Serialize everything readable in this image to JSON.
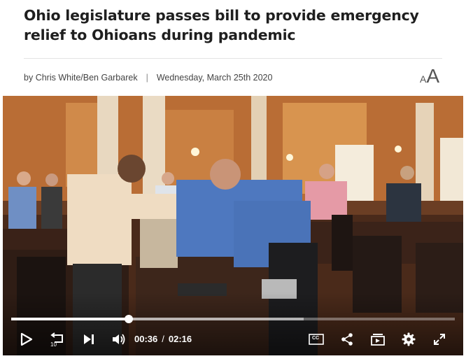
{
  "article": {
    "headline": "Ohio legislature passes bill to provide emergency relief to Ohioans during pandemic",
    "byline_prefix": "by",
    "authors": "Chris White/Ben Garbarek",
    "separator": "|",
    "date": "Wednesday, March 25th 2020",
    "text_size_small": "A",
    "text_size_large": "A"
  },
  "video": {
    "current_time": "00:36",
    "duration": "02:16",
    "time_separator": "/",
    "progress_fraction": 0.265,
    "buffered_fraction": 0.66,
    "rewind_label": "10",
    "cc_label": "CC",
    "controls": {
      "play": "play-icon",
      "rewind": "rewind-10-icon",
      "next": "skip-next-icon",
      "volume": "volume-icon",
      "captions": "closed-captions-icon",
      "share": "share-icon",
      "playlist": "playlist-icon",
      "settings": "gear-icon",
      "fullscreen": "fullscreen-icon"
    }
  },
  "colors": {
    "headline": "#1f1f1f",
    "byline": "#444444",
    "player_controls": "#ffffff"
  }
}
